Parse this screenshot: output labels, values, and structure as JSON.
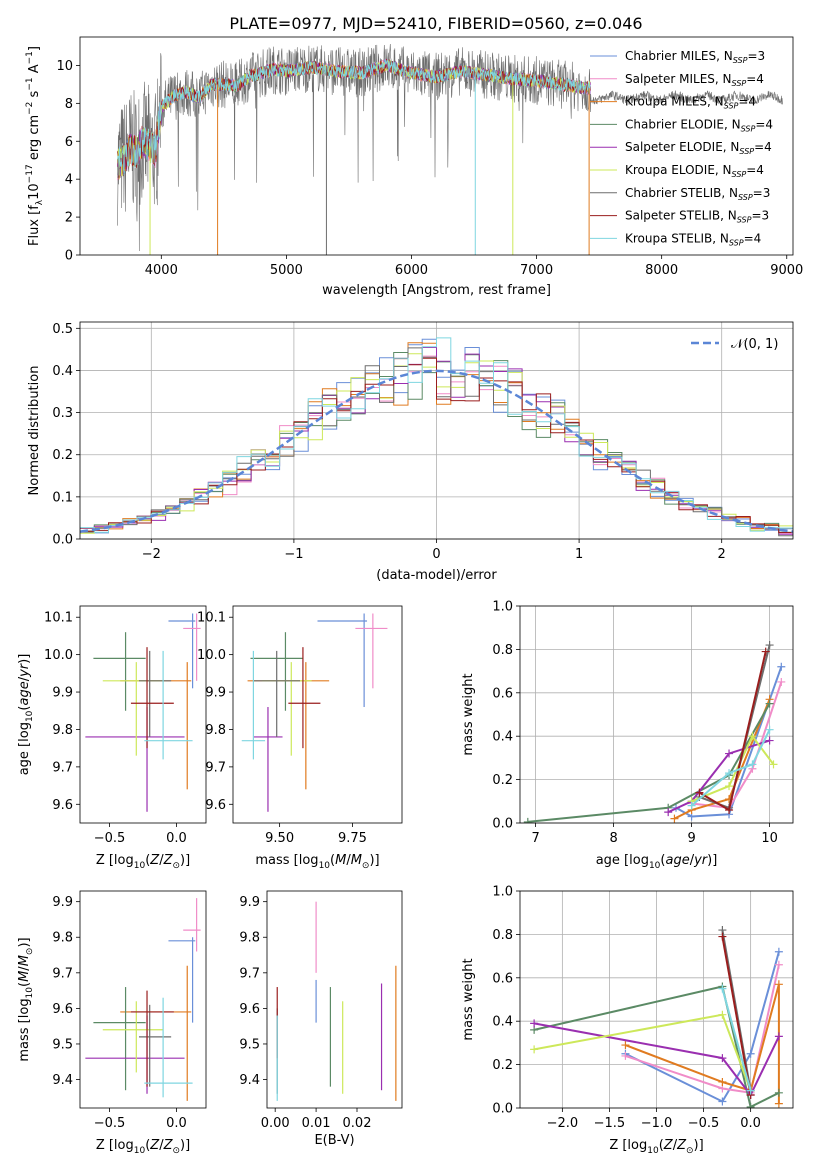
{
  "figure_title": "PLATE=0977, MJD=52410, FIBERID=0560, z=0.046",
  "palette": [
    "#6a8fd8",
    "#f08cc8",
    "#e07b20",
    "#5b8a65",
    "#9a2fb0",
    "#cde85a",
    "#6d6d6d",
    "#9a1e1e",
    "#7fd6e0"
  ],
  "chart_data": [
    {
      "type": "line",
      "title": "PLATE=0977, MJD=52410, FIBERID=0560, z=0.046",
      "xlabel": "wavelength [Angstrom, rest frame]",
      "ylabel": "Flux [f_λ10^-17 erg cm^-2 s^-1 A^-1]",
      "xlim": [
        3350,
        9050
      ],
      "ylim": [
        0,
        11.5
      ],
      "xticks": [
        4000,
        5000,
        6000,
        7000,
        8000,
        9000
      ],
      "yticks": [
        0,
        2,
        4,
        6,
        8,
        10
      ],
      "legend": "right",
      "legend_entries": [
        {
          "pre": "Chabrier MILES, N",
          "sub": "SSP",
          "post": "=3"
        },
        {
          "pre": "Salpeter MILES, N",
          "sub": "SSP",
          "post": "=4"
        },
        {
          "pre": "Kroupa MILES, N",
          "sub": "SSP",
          "post": "=4"
        },
        {
          "pre": "Chabrier ELODIE, N",
          "sub": "SSP",
          "post": "=4"
        },
        {
          "pre": "Salpeter ELODIE, N",
          "sub": "SSP",
          "post": "=4"
        },
        {
          "pre": "Kroupa ELODIE, N",
          "sub": "SSP",
          "post": "=4"
        },
        {
          "pre": "Chabrier STELIB, N",
          "sub": "SSP",
          "post": "=3"
        },
        {
          "pre": "Salpeter STELIB, N",
          "sub": "SSP",
          "post": "=3"
        },
        {
          "pre": "Kroupa STELIB, N",
          "sub": "SSP",
          "post": "=4"
        }
      ],
      "data_envelope": {
        "x": [
          3650,
          3700,
          3750,
          3800,
          3850,
          3900,
          3950,
          4000,
          4100,
          4200,
          4300,
          4400,
          4500,
          4600,
          4700,
          4800,
          4900,
          5000,
          5200,
          5400,
          5600,
          5800,
          6000,
          6200,
          6400,
          6600,
          6800,
          7000,
          7200,
          7400
        ],
        "y": [
          4.8,
          5.0,
          5.6,
          5.4,
          6.0,
          5.8,
          5.4,
          7.8,
          8.4,
          8.6,
          8.3,
          9.0,
          9.0,
          8.9,
          9.4,
          9.6,
          9.8,
          9.7,
          9.9,
          9.7,
          9.6,
          10.0,
          9.6,
          9.4,
          9.7,
          9.5,
          9.3,
          9.2,
          9.0,
          8.8
        ]
      },
      "dropouts": [
        {
          "series": 5,
          "x": 3910
        },
        {
          "series": 2,
          "x": 4450
        },
        {
          "series": 6,
          "x": 5320
        },
        {
          "series": 8,
          "x": 6510
        },
        {
          "series": 5,
          "x": 6810
        },
        {
          "series": 2,
          "x": 7420
        }
      ]
    },
    {
      "type": "histogram",
      "xlabel": "(data-model)/error",
      "ylabel": "Normed distribution",
      "xlim": [
        -2.5,
        2.5
      ],
      "ylim": [
        0,
        0.515
      ],
      "xticks": [
        -2,
        -1,
        0,
        1,
        2
      ],
      "yticks": [
        0.0,
        0.1,
        0.2,
        0.3,
        0.4,
        0.5
      ],
      "grid": true,
      "bin_width": 0.1,
      "bin_start": -2.5,
      "legend": "top-right",
      "legend_label": "𝒩(0, 1)",
      "reference_curve": "normal(0,1)"
    },
    {
      "type": "errorbar",
      "xlabel": "Z [log10(Z/Z⊙)]",
      "ylabel": "age  [log10(age/yr)]",
      "xlim": [
        -0.72,
        0.22
      ],
      "ylim": [
        9.55,
        10.13
      ],
      "xticks": [
        -0.5,
        0.0
      ],
      "yticks": [
        9.6,
        9.7,
        9.8,
        9.9,
        10.0,
        10.1
      ],
      "points": [
        {
          "series": 0,
          "x": 0.12,
          "xerr": [
            0.18,
            0.02
          ],
          "y": 10.09,
          "yerr": [
            0.18,
            0.02
          ]
        },
        {
          "series": 1,
          "x": 0.15,
          "xerr": [
            0.1,
            0.03
          ],
          "y": 10.07,
          "yerr": [
            0.14,
            0.04
          ]
        },
        {
          "series": 2,
          "x": 0.08,
          "xerr": [
            0.5,
            0.03
          ],
          "y": 9.93,
          "yerr": [
            0.29,
            0.05
          ]
        },
        {
          "series": 3,
          "x": -0.38,
          "xerr": [
            0.24,
            0.15
          ],
          "y": 9.99,
          "yerr": [
            0.14,
            0.07
          ]
        },
        {
          "series": 4,
          "x": -0.22,
          "xerr": [
            0.46,
            0.28
          ],
          "y": 9.78,
          "yerr": [
            0.2,
            0.08
          ]
        },
        {
          "series": 5,
          "x": -0.3,
          "xerr": [
            0.25,
            0.2
          ],
          "y": 9.93,
          "yerr": [
            0.2,
            0.05
          ]
        },
        {
          "series": 6,
          "x": -0.2,
          "xerr": [
            0.08,
            0.16
          ],
          "y": 9.93,
          "yerr": [
            0.15,
            0.08
          ]
        },
        {
          "series": 7,
          "x": -0.22,
          "xerr": [
            0.12,
            0.2
          ],
          "y": 9.87,
          "yerr": [
            0.12,
            0.15
          ]
        },
        {
          "series": 8,
          "x": -0.1,
          "xerr": [
            0.14,
            0.22
          ],
          "y": 9.77,
          "yerr": [
            0.05,
            0.24
          ]
        }
      ]
    },
    {
      "type": "errorbar",
      "xlabel": "mass [log10(M/M⊙)]",
      "ylabel": "",
      "xlim": [
        9.34,
        9.92
      ],
      "ylim": [
        9.55,
        10.13
      ],
      "xticks": [
        9.5,
        9.75
      ],
      "yticks": [
        9.6,
        9.7,
        9.8,
        9.9,
        10.0,
        10.1
      ],
      "points": [
        {
          "series": 0,
          "x": 9.79,
          "xerr": [
            0.16,
            0.01
          ],
          "y": 10.09,
          "yerr": [
            0.23,
            0.02
          ]
        },
        {
          "series": 1,
          "x": 9.82,
          "xerr": [
            0.06,
            0.05
          ],
          "y": 10.07,
          "yerr": [
            0.16,
            0.04
          ]
        },
        {
          "series": 2,
          "x": 9.59,
          "xerr": [
            0.2,
            0.08
          ],
          "y": 9.93,
          "yerr": [
            0.29,
            0.05
          ]
        },
        {
          "series": 3,
          "x": 9.52,
          "xerr": [
            0.12,
            0.06
          ],
          "y": 9.99,
          "yerr": [
            0.14,
            0.07
          ]
        },
        {
          "series": 4,
          "x": 9.46,
          "xerr": [
            0.05,
            0.05
          ],
          "y": 9.78,
          "yerr": [
            0.2,
            0.08
          ]
        },
        {
          "series": 5,
          "x": 9.54,
          "xerr": [
            0.1,
            0.07
          ],
          "y": 9.93,
          "yerr": [
            0.2,
            0.05
          ]
        },
        {
          "series": 6,
          "x": 9.49,
          "xerr": [
            0.08,
            0.08
          ],
          "y": 9.93,
          "yerr": [
            0.15,
            0.08
          ]
        },
        {
          "series": 7,
          "x": 9.58,
          "xerr": [
            0.05,
            0.06
          ],
          "y": 9.87,
          "yerr": [
            0.12,
            0.15
          ]
        },
        {
          "series": 8,
          "x": 9.41,
          "xerr": [
            0.04,
            0.04
          ],
          "y": 9.77,
          "yerr": [
            0.05,
            0.24
          ]
        }
      ]
    },
    {
      "type": "line",
      "xlabel": "age  [log10(age/yr)]",
      "ylabel": "mass weight",
      "xlim": [
        6.8,
        10.3
      ],
      "ylim": [
        0,
        1.0
      ],
      "xticks": [
        7,
        8,
        9,
        10
      ],
      "yticks": [
        0.0,
        0.2,
        0.4,
        0.6,
        0.8,
        1.0
      ],
      "grid": true,
      "marker": "+",
      "series": [
        {
          "x": [
            8.8,
            9.0,
            9.48,
            10.15
          ],
          "y": [
            0.07,
            0.03,
            0.04,
            0.72
          ]
        },
        {
          "x": [
            9.0,
            9.48,
            9.78,
            10.15
          ],
          "y": [
            0.09,
            0.07,
            0.25,
            0.65
          ]
        },
        {
          "x": [
            8.78,
            9.0,
            9.48,
            10.0
          ],
          "y": [
            0.02,
            0.06,
            0.11,
            0.57
          ]
        },
        {
          "x": [
            6.9,
            8.7,
            9.48,
            10.0
          ],
          "y": [
            0.005,
            0.07,
            0.22,
            0.55
          ]
        },
        {
          "x": [
            8.7,
            9.0,
            9.48,
            10.0
          ],
          "y": [
            0.05,
            0.1,
            0.32,
            0.38
          ]
        },
        {
          "x": [
            9.0,
            9.48,
            9.78,
            10.05
          ],
          "y": [
            0.1,
            0.17,
            0.4,
            0.27
          ]
        },
        {
          "x": [
            9.1,
            9.48,
            10.0
          ],
          "y": [
            0.12,
            0.07,
            0.82
          ]
        },
        {
          "x": [
            9.1,
            9.48,
            9.95
          ],
          "y": [
            0.14,
            0.06,
            0.79
          ]
        },
        {
          "x": [
            9.0,
            9.48,
            9.78,
            10.0
          ],
          "y": [
            0.08,
            0.23,
            0.27,
            0.43
          ]
        }
      ]
    },
    {
      "type": "errorbar",
      "xlabel": "Z [log10(Z/Z⊙)]",
      "ylabel": "mass [log10(M/M⊙)]",
      "xlim": [
        -0.72,
        0.22
      ],
      "ylim": [
        9.32,
        9.93
      ],
      "xticks": [
        -0.5,
        0.0
      ],
      "yticks": [
        9.4,
        9.5,
        9.6,
        9.7,
        9.8,
        9.9
      ],
      "points": [
        {
          "series": 0,
          "x": 0.12,
          "xerr": [
            0.18,
            0.02
          ],
          "y": 9.79,
          "yerr": [
            0.23,
            0.01
          ]
        },
        {
          "series": 1,
          "x": 0.15,
          "xerr": [
            0.1,
            0.03
          ],
          "y": 9.82,
          "yerr": [
            0.06,
            0.09
          ]
        },
        {
          "series": 2,
          "x": 0.08,
          "xerr": [
            0.5,
            0.03
          ],
          "y": 9.59,
          "yerr": [
            0.25,
            0.13
          ]
        },
        {
          "series": 3,
          "x": -0.38,
          "xerr": [
            0.24,
            0.15
          ],
          "y": 9.56,
          "yerr": [
            0.19,
            0.1
          ]
        },
        {
          "series": 4,
          "x": -0.22,
          "xerr": [
            0.46,
            0.28
          ],
          "y": 9.46,
          "yerr": [
            0.1,
            0.12
          ]
        },
        {
          "series": 5,
          "x": -0.3,
          "xerr": [
            0.25,
            0.2
          ],
          "y": 9.54,
          "yerr": [
            0.12,
            0.08
          ]
        },
        {
          "series": 6,
          "x": -0.2,
          "xerr": [
            0.08,
            0.16
          ],
          "y": 9.52,
          "yerr": [
            0.14,
            0.09
          ]
        },
        {
          "series": 7,
          "x": -0.22,
          "xerr": [
            0.12,
            0.2
          ],
          "y": 9.59,
          "yerr": [
            0.21,
            0.06
          ]
        },
        {
          "series": 8,
          "x": -0.1,
          "xerr": [
            0.14,
            0.22
          ],
          "y": 9.39,
          "yerr": [
            0.04,
            0.24
          ]
        }
      ]
    },
    {
      "type": "errorbar",
      "xlabel": "E(B-V)",
      "ylabel": "",
      "xlim": [
        -0.002,
        0.031
      ],
      "ylim": [
        9.32,
        9.93
      ],
      "xticks": [
        0.0,
        0.01,
        0.02
      ],
      "yticks": [
        9.4,
        9.5,
        9.6,
        9.7,
        9.8,
        9.9
      ],
      "points": [
        {
          "series": 0,
          "x": 0.01,
          "y": 9.62,
          "yerr": [
            0.06,
            0.06
          ]
        },
        {
          "series": 1,
          "x": 0.01,
          "y": 9.8,
          "yerr": [
            0.1,
            0.1
          ]
        },
        {
          "series": 2,
          "x": 0.0295,
          "y": 9.57,
          "yerr": [
            0.23,
            0.15
          ]
        },
        {
          "series": 3,
          "x": 0.0135,
          "y": 9.52,
          "yerr": [
            0.14,
            0.14
          ]
        },
        {
          "series": 4,
          "x": 0.026,
          "y": 9.52,
          "yerr": [
            0.15,
            0.15
          ]
        },
        {
          "series": 5,
          "x": 0.0165,
          "y": 9.49,
          "yerr": [
            0.13,
            0.13
          ]
        },
        {
          "series": 6,
          "x": 0.0005,
          "y": 9.48,
          "yerr": [
            0.12,
            0.12
          ]
        },
        {
          "series": 7,
          "x": 0.0005,
          "y": 9.56,
          "yerr": [
            0.1,
            0.1
          ]
        },
        {
          "series": 8,
          "x": 0.0005,
          "y": 9.46,
          "yerr": [
            0.12,
            0.12
          ]
        }
      ]
    },
    {
      "type": "line",
      "xlabel": "Z [log10(Z/Z⊙)]",
      "ylabel": "mass weight",
      "xlim": [
        -2.45,
        0.45
      ],
      "ylim": [
        0,
        1.0
      ],
      "xticks": [
        -2.0,
        -1.5,
        -1.0,
        -0.5,
        0.0
      ],
      "yticks": [
        0.0,
        0.2,
        0.4,
        0.6,
        0.8,
        1.0
      ],
      "grid": true,
      "marker": "+",
      "series": [
        {
          "x": [
            -1.33,
            -0.3,
            0.0,
            0.3
          ],
          "y": [
            0.25,
            0.03,
            0.25,
            0.72
          ]
        },
        {
          "x": [
            -1.33,
            -0.3,
            0.0,
            0.3
          ],
          "y": [
            0.24,
            0.09,
            0.07,
            0.66
          ]
        },
        {
          "x": [
            -1.33,
            -0.3,
            0.0,
            0.3,
            0.3
          ],
          "y": [
            0.29,
            0.12,
            0.08,
            0.57,
            0.02
          ]
        },
        {
          "x": [
            -2.3,
            -0.3,
            0.0,
            0.3
          ],
          "y": [
            0.36,
            0.56,
            0.005,
            0.07
          ]
        },
        {
          "x": [
            -2.3,
            -0.3,
            0.0,
            0.3
          ],
          "y": [
            0.39,
            0.23,
            0.06,
            0.33
          ]
        },
        {
          "x": [
            -2.3,
            -0.3,
            0.0
          ],
          "y": [
            0.27,
            0.43,
            0.08
          ]
        },
        {
          "x": [
            -0.3,
            0.0
          ],
          "y": [
            0.82,
            0.08
          ]
        },
        {
          "x": [
            -0.3,
            0.0
          ],
          "y": [
            0.79,
            0.06
          ]
        },
        {
          "x": [
            -0.3,
            0.0
          ],
          "y": [
            0.55,
            0.08
          ]
        }
      ]
    }
  ]
}
